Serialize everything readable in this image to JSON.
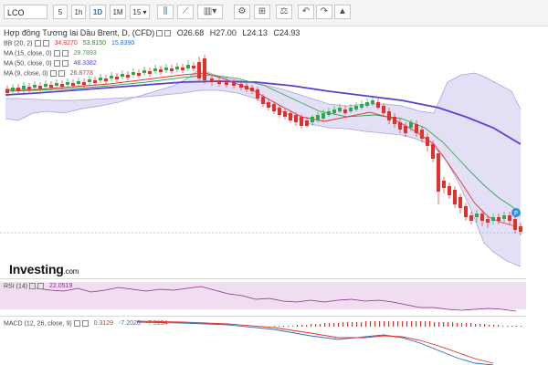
{
  "toolbar": {
    "symbol": "LCO",
    "buttons": [
      {
        "label": "5"
      },
      {
        "label": "1h"
      },
      {
        "label": "1D"
      },
      {
        "label": "1M"
      },
      {
        "label": "15"
      }
    ],
    "icons": [
      "candle-type-icon",
      "line-draw-icon",
      "indicators-icon",
      "settings-icon",
      "drawing-tools-icon",
      "scale-icon",
      "undo-icon",
      "redo-icon",
      "alert-icon"
    ]
  },
  "chart": {
    "title": "Hợp đồng Tương lai Dầu Brent, D, (CFD)",
    "open": "O26.68",
    "high": "H27.00",
    "low": "L24.13",
    "close": "C24.93",
    "indicators": [
      {
        "label": "BB (20, 2)",
        "values": [
          "34.8270",
          "53.8150",
          "15.8390"
        ],
        "colors": [
          "#e0322b",
          "#3a7a3a",
          "#2f6fb3"
        ]
      },
      {
        "label": "MA (15, close, 0)",
        "values": [
          "29.7893"
        ],
        "colors": [
          "#2fa84f"
        ]
      },
      {
        "label": "MA (50, close, 0)",
        "values": [
          "48.3382"
        ],
        "colors": [
          "#5b3fd0"
        ]
      },
      {
        "label": "MA (9, close, 0)",
        "values": [
          "26.8778"
        ],
        "colors": [
          "#e0322b"
        ]
      }
    ],
    "rsi": {
      "label": "RSI (14)",
      "value": "22.0519"
    },
    "macd": {
      "label": "MACD (12, 26, close, 9)",
      "values": [
        "0.3129",
        "-7.2026",
        "-7.5154"
      ],
      "colors": [
        "#e0322b",
        "#2f6fb3",
        "#e0322b"
      ]
    }
  },
  "brand": {
    "name": "Investing",
    "suffix": ".com"
  },
  "colors": {
    "up": "#2fa84f",
    "down": "#e0322b",
    "band": "#6a5ec8",
    "bandFill": "#e3e0f6",
    "rsiFill": "#f0def0"
  }
}
